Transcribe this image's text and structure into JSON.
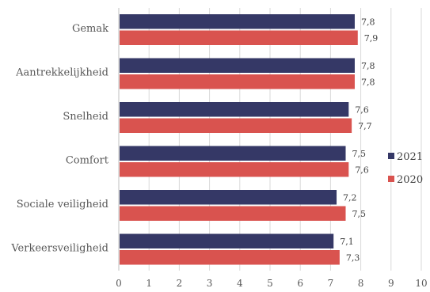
{
  "chart_data": {
    "type": "bar",
    "orientation": "horizontal",
    "categories": [
      "Gemak",
      "Aantrekkelijkheid",
      "Snelheid",
      "Comfort",
      "Sociale veiligheid",
      "Verkeersveiligheid"
    ],
    "series": [
      {
        "name": "2021",
        "color": "#353866",
        "values": [
          7.8,
          7.8,
          7.6,
          7.5,
          7.2,
          7.1
        ],
        "labels": [
          "7,8",
          "7,8",
          "7,6",
          "7,5",
          "7,2",
          "7,1"
        ]
      },
      {
        "name": "2020",
        "color": "#d9534f",
        "values": [
          7.9,
          7.8,
          7.7,
          7.6,
          7.5,
          7.3
        ],
        "labels": [
          "7,9",
          "7,8",
          "7,7",
          "7,6",
          "7,5",
          "7,3"
        ]
      }
    ],
    "xlim": [
      0,
      10
    ],
    "xticks": [
      "0",
      "1",
      "2",
      "3",
      "4",
      "5",
      "6",
      "7",
      "8",
      "9",
      "10"
    ],
    "grid": true,
    "legend_position": "right"
  }
}
